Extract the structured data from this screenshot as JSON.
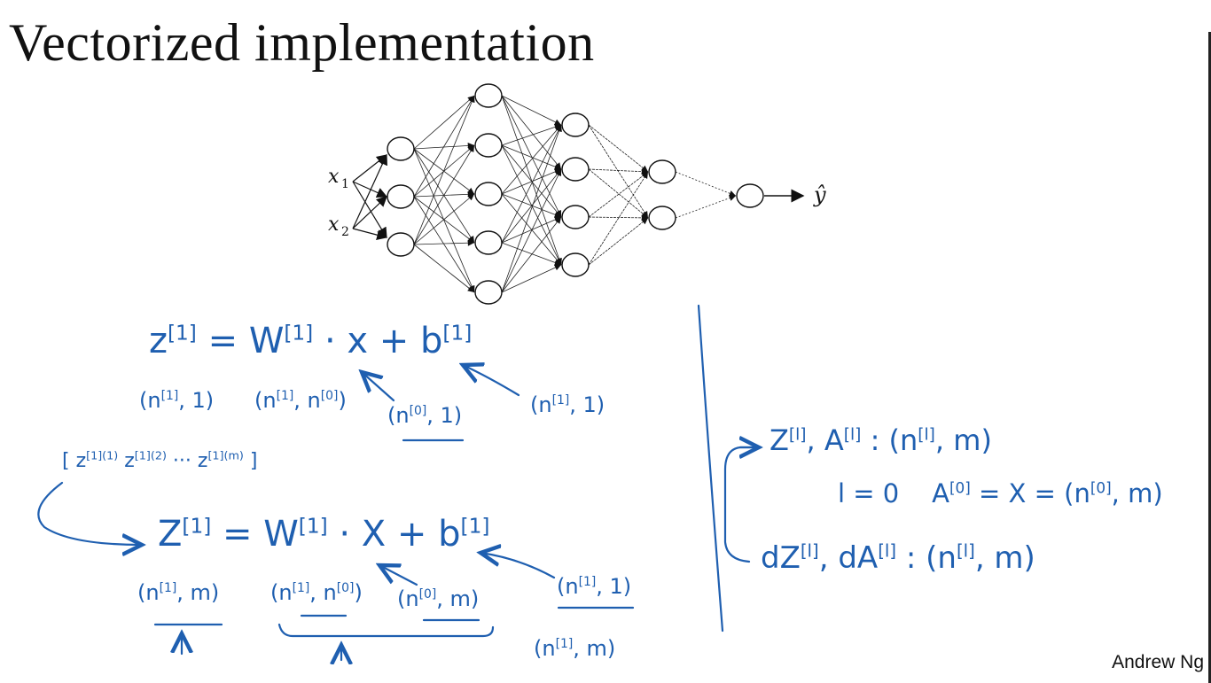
{
  "title": "Vectorized implementation",
  "author": "Andrew Ng",
  "network": {
    "inputs": [
      "x",
      "x"
    ],
    "input_subscripts": [
      "1",
      "2"
    ],
    "output": "ŷ",
    "layer_sizes": [
      3,
      5,
      4,
      2,
      1
    ]
  },
  "single_example": {
    "eq_lhs": "z",
    "eq_lhs_sup": "[1]",
    "eq_eq": "=",
    "eq_w": "W",
    "eq_w_sup": "[1]",
    "eq_dot_x": "· x +",
    "eq_b": "b",
    "eq_b_sup": "[1]",
    "dim_z": "(n",
    "dim_z_sup": "[1]",
    "dim_z_end": ", 1)",
    "dim_w": "(n",
    "dim_w_sup": "[1]",
    "dim_w_mid": ", n",
    "dim_w_sup2": "[0]",
    "dim_w_end": ")",
    "dim_x": "(n",
    "dim_x_sup": "[0]",
    "dim_x_end": ", 1)",
    "dim_b": "(n",
    "dim_b_sup": "[1]",
    "dim_b_end": ", 1)"
  },
  "vectorized": {
    "stack": "[ z",
    "stack_s1": "[1](1)",
    "stack_z2": " z",
    "stack_s2": "[1](2)",
    "stack_dots": " ··· z",
    "stack_s3": "[1](m)",
    "stack_end": " ]",
    "eq_lhs": "Z",
    "eq_lhs_sup": "[1]",
    "eq_eq": "=",
    "eq_w": "W",
    "eq_w_sup": "[1]",
    "eq_dot_x": "· X +",
    "eq_b": "b",
    "eq_b_sup": "[1]",
    "dim_z": "(n",
    "dim_z_sup": "[1]",
    "dim_z_end": ", m)",
    "dim_w": "(n",
    "dim_w_sup": "[1]",
    "dim_w_mid": ", n",
    "dim_w_sup2": "[0]",
    "dim_w_end": ")",
    "dim_x": "(n",
    "dim_x_sup": "[0]",
    "dim_x_end": ", m)",
    "dim_b": "(n",
    "dim_b_sup": "[1]",
    "dim_b_end": ", 1)",
    "dim_b2": "(n",
    "dim_b2_sup": "[1]",
    "dim_b2_end": ", m)"
  },
  "summary": {
    "line1_a": "Z",
    "line1_a_sup": "[l]",
    "line1_b": ", A",
    "line1_b_sup": "[l]",
    "line1_c": " : (n",
    "line1_c_sup": "[l]",
    "line1_d": ", m)",
    "line2_a": "l = 0",
    "line2_b": "A",
    "line2_b_sup": "[0]",
    "line2_c": " = X = (n",
    "line2_c_sup": "[0]",
    "line2_d": ", m)",
    "line3_a": "dZ",
    "line3_a_sup": "[l]",
    "line3_b": ", dA",
    "line3_b_sup": "[l]",
    "line3_c": " : (n",
    "line3_c_sup": "[l]",
    "line3_d": ", m)"
  }
}
